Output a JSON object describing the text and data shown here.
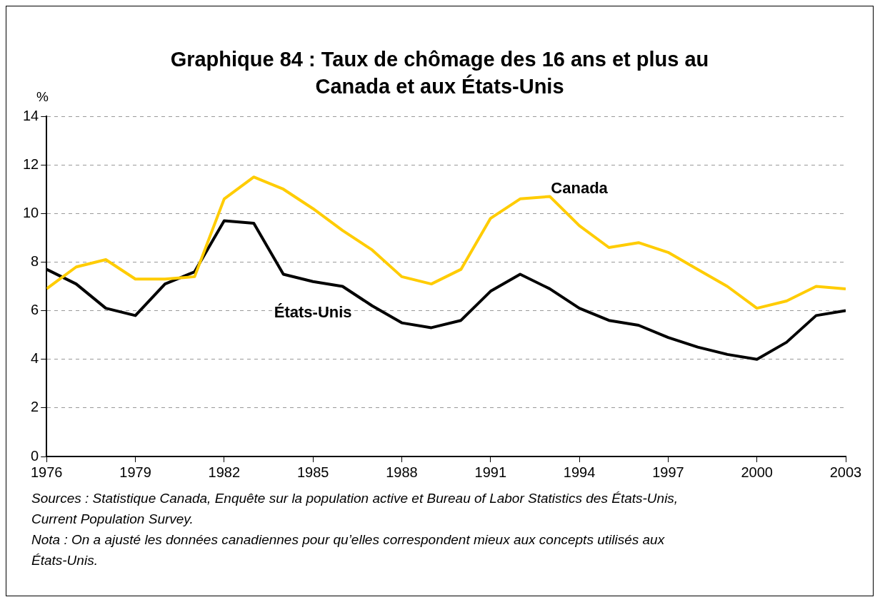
{
  "chart_data": {
    "type": "line",
    "title": "Graphique 84 : Taux de chômage des 16 ans et plus au Canada et aux États-Unis",
    "ylabel": "%",
    "x": [
      1976,
      1977,
      1978,
      1979,
      1980,
      1981,
      1982,
      1983,
      1984,
      1985,
      1986,
      1987,
      1988,
      1989,
      1990,
      1991,
      1992,
      1993,
      1994,
      1995,
      1996,
      1997,
      1998,
      1999,
      2000,
      2001,
      2002,
      2003
    ],
    "series": [
      {
        "name": "Canada",
        "color": "#ffcc00",
        "values": [
          6.9,
          7.8,
          8.1,
          7.3,
          7.3,
          7.4,
          10.6,
          11.5,
          11.0,
          10.2,
          9.3,
          8.5,
          7.4,
          7.1,
          7.7,
          9.8,
          10.6,
          10.7,
          9.5,
          8.6,
          8.8,
          8.4,
          7.7,
          7.0,
          6.1,
          6.4,
          7.0,
          6.9
        ]
      },
      {
        "name": "États-Unis",
        "color": "#000000",
        "values": [
          7.7,
          7.1,
          6.1,
          5.8,
          7.1,
          7.6,
          9.7,
          9.6,
          7.5,
          7.2,
          7.0,
          6.2,
          5.5,
          5.3,
          5.6,
          6.8,
          7.5,
          6.9,
          6.1,
          5.6,
          5.4,
          4.9,
          4.5,
          4.2,
          4.0,
          4.7,
          5.8,
          6.0
        ]
      }
    ],
    "xlim": [
      1976,
      2003
    ],
    "xticks": [
      1976,
      1979,
      1982,
      1985,
      1988,
      1991,
      1994,
      1997,
      2000,
      2003
    ],
    "ylim": [
      0,
      14
    ],
    "yticks": [
      0,
      2,
      4,
      6,
      8,
      10,
      12,
      14
    ],
    "grid": "y",
    "legend": false,
    "marker": "none",
    "line_style": "solid",
    "annotations": [
      "Sources : Statistique Canada, Enquête sur la population active et Bureau of Labor Statistics des États-Unis, Current Population Survey.",
      "Nota : On a ajusté les données canadiennes pour qu’elles correspondent mieux aux concepts utilisés aux États-Unis."
    ]
  }
}
